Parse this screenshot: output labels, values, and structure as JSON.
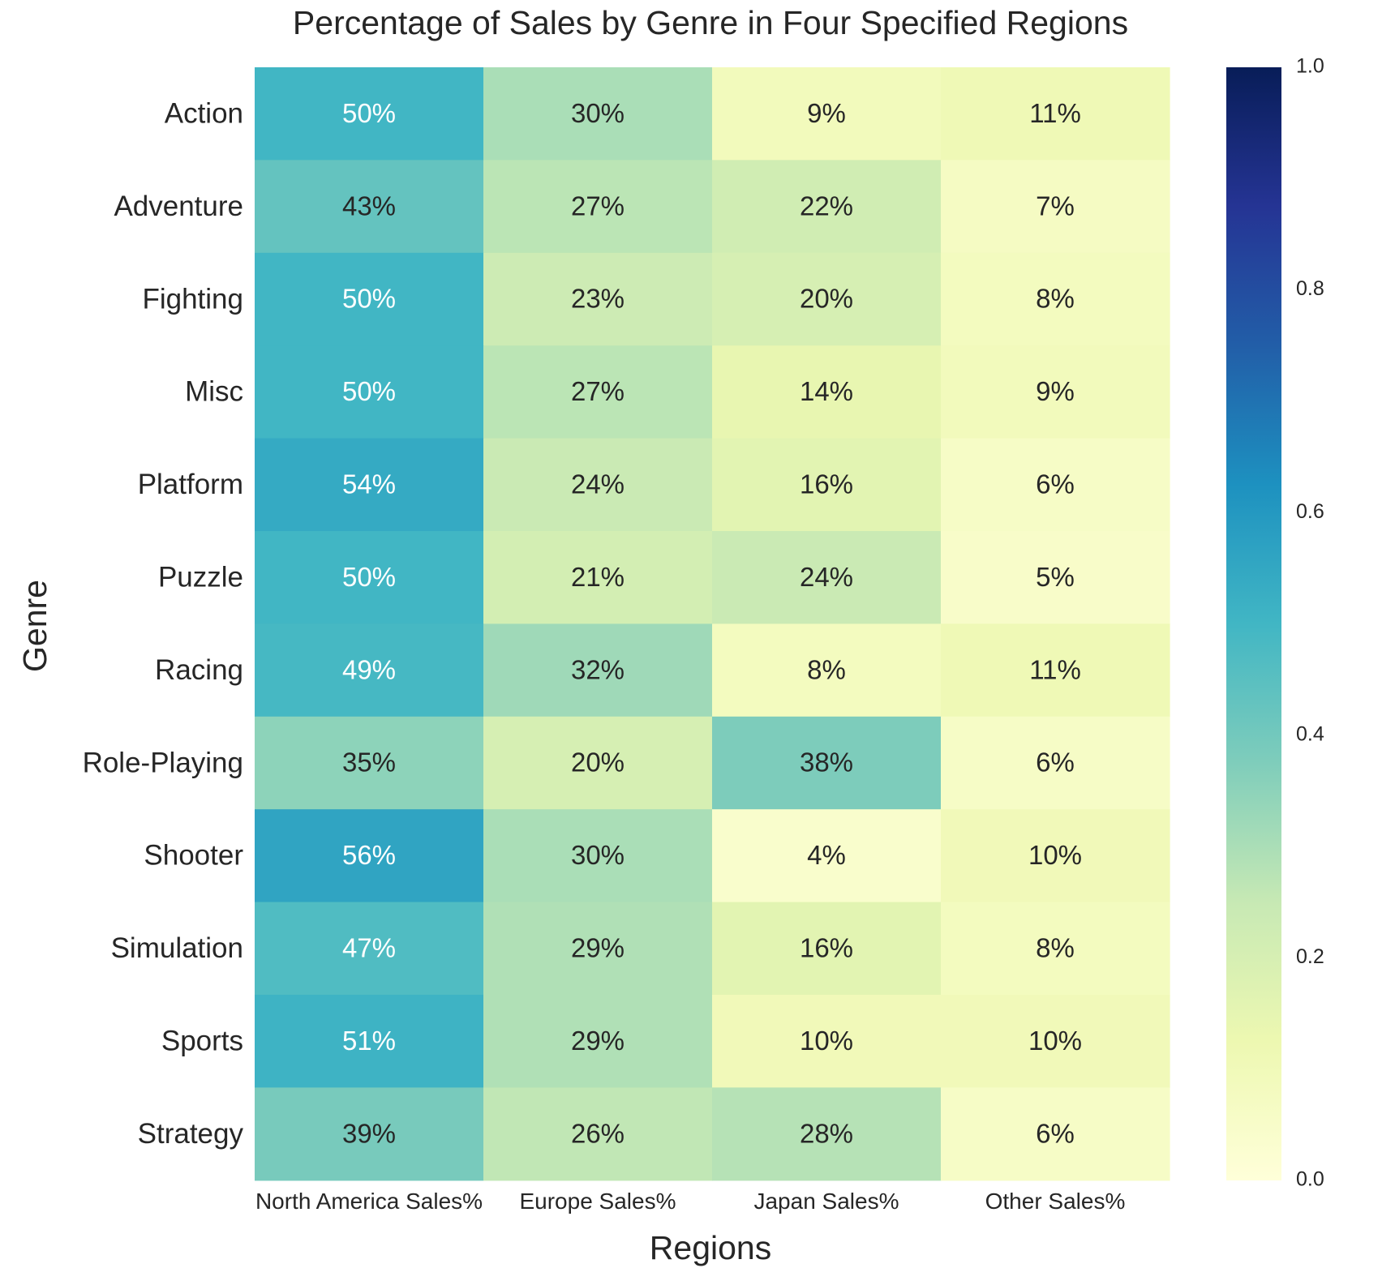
{
  "chart_data": {
    "type": "heatmap",
    "title": "Percentage of Sales by Genre in Four Specified Regions",
    "xlabel": "Regions",
    "ylabel": "Genre",
    "columns": [
      "North America Sales%",
      "Europe Sales%",
      "Japan Sales%",
      "Other Sales%"
    ],
    "rows": [
      "Action",
      "Adventure",
      "Fighting",
      "Misc",
      "Platform",
      "Puzzle",
      "Racing",
      "Role-Playing",
      "Shooter",
      "Simulation",
      "Sports",
      "Strategy"
    ],
    "values": [
      [
        0.5,
        0.3,
        0.09,
        0.11
      ],
      [
        0.43,
        0.27,
        0.22,
        0.07
      ],
      [
        0.5,
        0.23,
        0.2,
        0.08
      ],
      [
        0.5,
        0.27,
        0.14,
        0.09
      ],
      [
        0.54,
        0.24,
        0.16,
        0.06
      ],
      [
        0.5,
        0.21,
        0.24,
        0.05
      ],
      [
        0.49,
        0.32,
        0.08,
        0.11
      ],
      [
        0.35,
        0.2,
        0.38,
        0.06
      ],
      [
        0.56,
        0.3,
        0.04,
        0.1
      ],
      [
        0.47,
        0.29,
        0.16,
        0.08
      ],
      [
        0.51,
        0.29,
        0.1,
        0.1
      ],
      [
        0.39,
        0.26,
        0.28,
        0.06
      ]
    ],
    "labels": [
      [
        "50%",
        "30%",
        "9%",
        "11%"
      ],
      [
        "43%",
        "27%",
        "22%",
        "7%"
      ],
      [
        "50%",
        "23%",
        "20%",
        "8%"
      ],
      [
        "50%",
        "27%",
        "14%",
        "9%"
      ],
      [
        "54%",
        "24%",
        "16%",
        "6%"
      ],
      [
        "50%",
        "21%",
        "24%",
        "5%"
      ],
      [
        "49%",
        "32%",
        "8%",
        "11%"
      ],
      [
        "35%",
        "20%",
        "38%",
        "6%"
      ],
      [
        "56%",
        "30%",
        "4%",
        "10%"
      ],
      [
        "47%",
        "29%",
        "16%",
        "8%"
      ],
      [
        "51%",
        "29%",
        "10%",
        "10%"
      ],
      [
        "39%",
        "26%",
        "28%",
        "6%"
      ]
    ],
    "colorbar": {
      "min": 0.0,
      "max": 1.0,
      "ticks": [
        "0.0",
        "0.2",
        "0.4",
        "0.6",
        "0.8",
        "1.0"
      ],
      "colormap": "YlGnBu"
    },
    "colors": {
      "text_dark": "#262626",
      "text_light": "#ffffff",
      "colorscale": [
        "#ffffd9",
        "#edf8b1",
        "#c7e9b4",
        "#7fcdbb",
        "#41b6c4",
        "#1d91c0",
        "#225ea8",
        "#253494",
        "#081d58"
      ]
    },
    "grid": false
  }
}
